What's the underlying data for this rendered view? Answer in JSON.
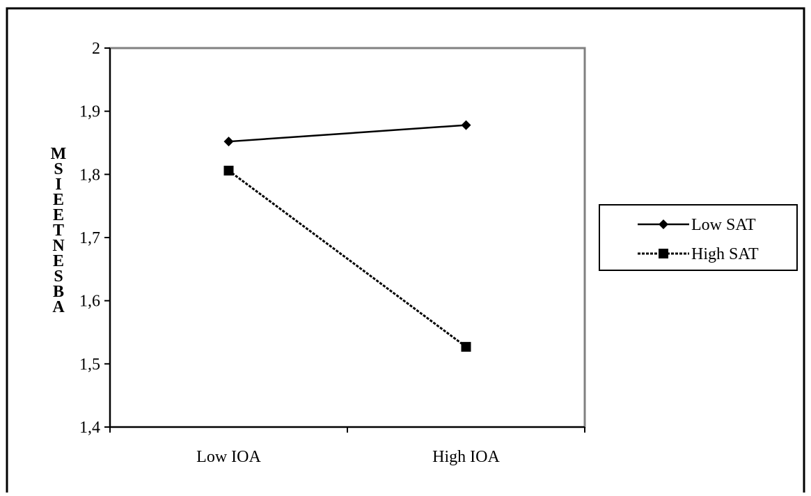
{
  "chart_data": {
    "type": "line",
    "title": "",
    "xlabel": "",
    "ylabel": "ABSENTEEISM",
    "categories": [
      "Low IOA",
      "High IOA"
    ],
    "yticks": [
      "1,4",
      "1,5",
      "1,6",
      "1,7",
      "1,8",
      "1,9",
      "2"
    ],
    "ylim": [
      1.4,
      2.0
    ],
    "grid": false,
    "legend_position": "right",
    "series": [
      {
        "name": "Low SAT",
        "values": [
          1.852,
          1.878
        ],
        "marker": "diamond",
        "line_style": "solid",
        "color": "#000000"
      },
      {
        "name": "High SAT",
        "values": [
          1.806,
          1.527
        ],
        "marker": "square",
        "line_style": "dashed",
        "color": "#000000"
      }
    ]
  }
}
